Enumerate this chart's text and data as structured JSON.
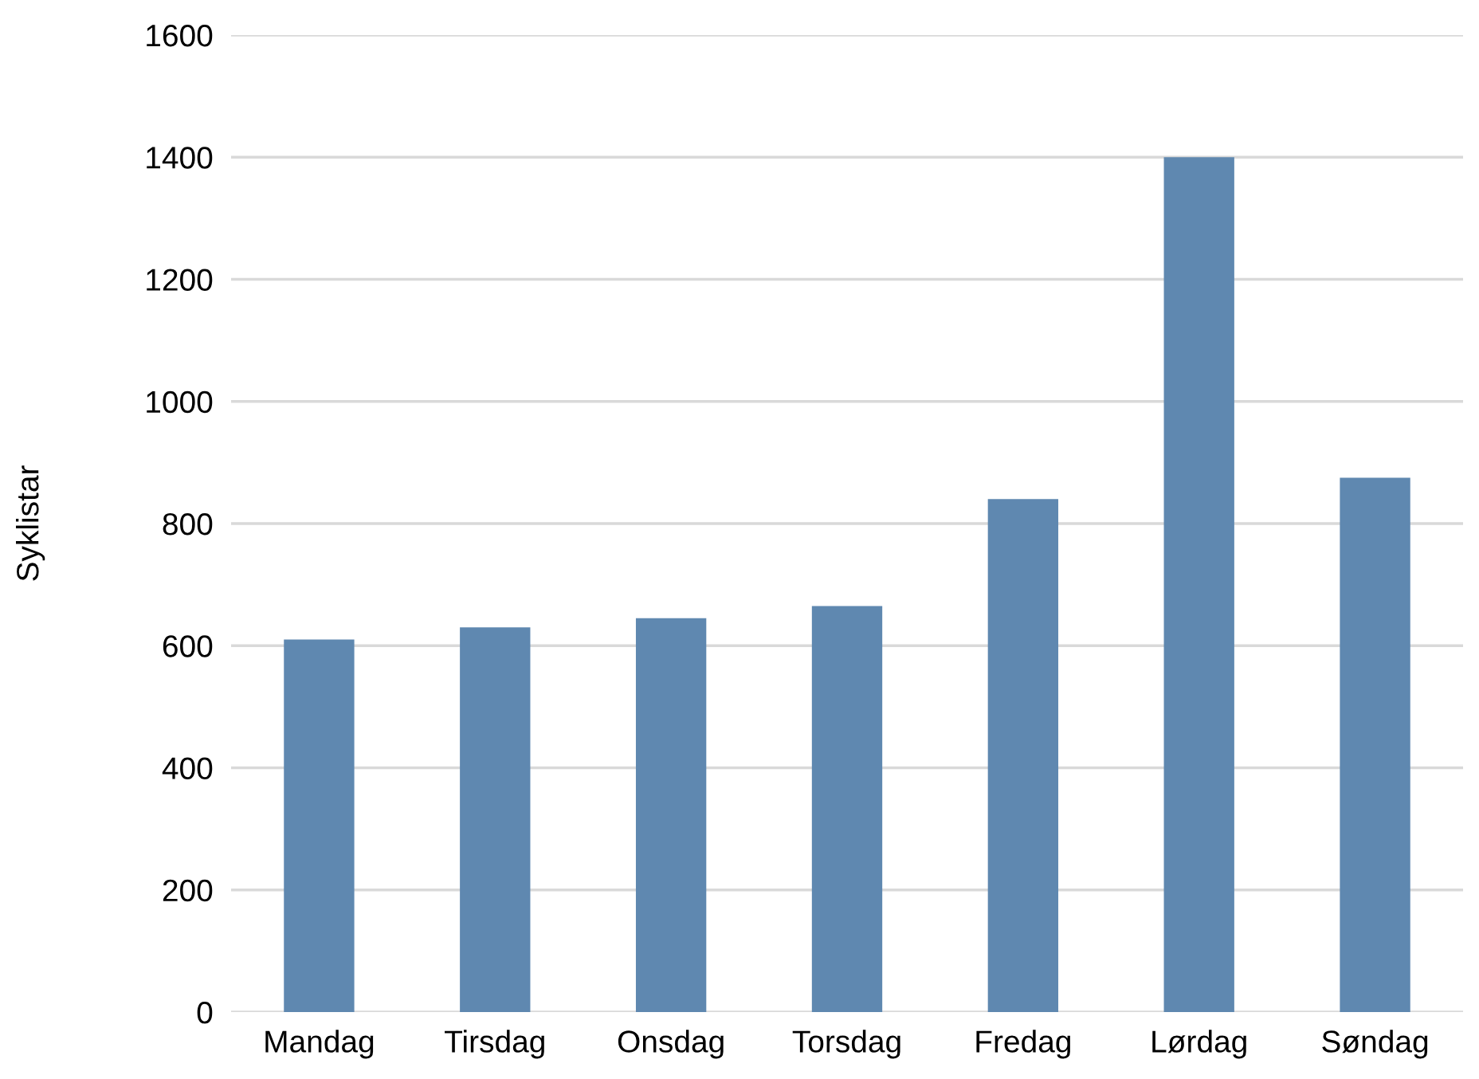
{
  "chart_data": {
    "type": "bar",
    "ylabel": "Syklistar",
    "categories": [
      "Mandag",
      "Tirsdag",
      "Onsdag",
      "Torsdag",
      "Fredag",
      "Lørdag",
      "Søndag"
    ],
    "values": [
      610,
      630,
      645,
      665,
      840,
      1400,
      875
    ],
    "color": "#5f88b0",
    "ylim": [
      0,
      1600
    ],
    "yticks": [
      0,
      200,
      400,
      600,
      800,
      1000,
      1200,
      1400,
      1600
    ],
    "grid": "y"
  }
}
